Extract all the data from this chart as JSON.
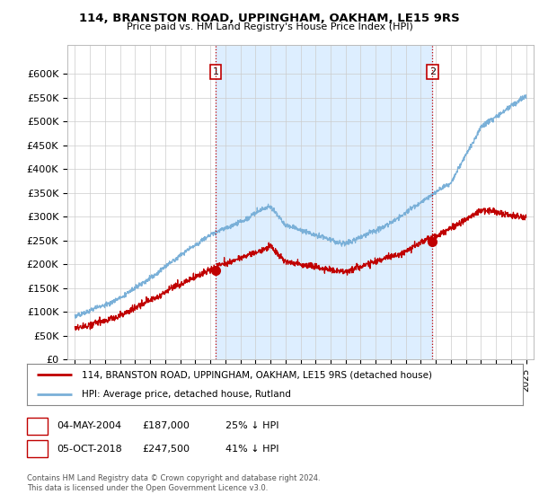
{
  "title": "114, BRANSTON ROAD, UPPINGHAM, OAKHAM, LE15 9RS",
  "subtitle": "Price paid vs. HM Land Registry's House Price Index (HPI)",
  "ylabel_ticks": [
    "£0",
    "£50K",
    "£100K",
    "£150K",
    "£200K",
    "£250K",
    "£300K",
    "£350K",
    "£400K",
    "£450K",
    "£500K",
    "£550K",
    "£600K"
  ],
  "ytick_values": [
    0,
    50000,
    100000,
    150000,
    200000,
    250000,
    300000,
    350000,
    400000,
    450000,
    500000,
    550000,
    600000
  ],
  "ylim": [
    0,
    660000
  ],
  "xlim_start": 1994.5,
  "xlim_end": 2025.5,
  "hpi_color": "#7ab0d8",
  "price_color": "#c00000",
  "marker1_x": 2004.35,
  "marker1_y": 187000,
  "marker2_x": 2018.77,
  "marker2_y": 247500,
  "vline1_x": 2004.35,
  "vline2_x": 2018.77,
  "shade_color": "#ddeeff",
  "legend_line1": "114, BRANSTON ROAD, UPPINGHAM, OAKHAM, LE15 9RS (detached house)",
  "legend_line2": "HPI: Average price, detached house, Rutland",
  "table_row1_label": "1",
  "table_row1_date": "04-MAY-2004",
  "table_row1_price": "£187,000",
  "table_row1_hpi": "25% ↓ HPI",
  "table_row2_label": "2",
  "table_row2_date": "05-OCT-2018",
  "table_row2_price": "£247,500",
  "table_row2_hpi": "41% ↓ HPI",
  "footer": "Contains HM Land Registry data © Crown copyright and database right 2024.\nThis data is licensed under the Open Government Licence v3.0.",
  "background_color": "#ffffff",
  "grid_color": "#cccccc"
}
